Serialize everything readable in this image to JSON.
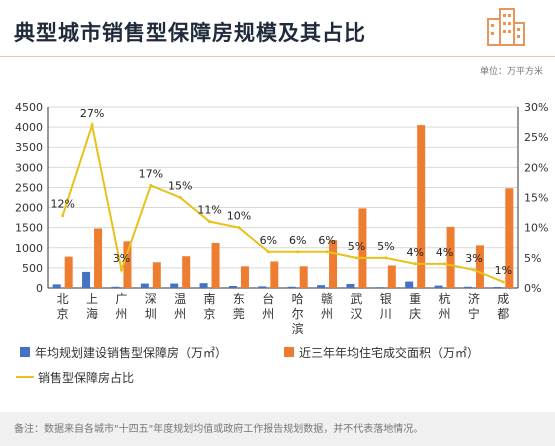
{
  "title": "典型城市销售型保障房规模及其占比",
  "unit_label": "单位：万平方米",
  "footnote": "备注：数据来自各城市\"十四五\"年度规划均值或政府工作报告规划数据，并不代表落地情况。",
  "colors": {
    "blue": "#4472C4",
    "orange": "#ED7D31",
    "line": "#E8C21A",
    "grid": "#d9d9d9",
    "axis": "#333333"
  },
  "chart_data": {
    "type": "bar",
    "categories": [
      "北京",
      "上海",
      "广州",
      "深圳",
      "温州",
      "南京",
      "东莞",
      "台州",
      "哈尔滨",
      "赣州",
      "武汉",
      "银川",
      "重庆",
      "杭州",
      "济宁",
      "成都"
    ],
    "series": [
      {
        "name": "年均规划建设销售型保障房（万㎡）",
        "type": "bar",
        "axis": "left",
        "color": "#4472C4",
        "values": [
          90,
          400,
          30,
          110,
          110,
          120,
          50,
          40,
          30,
          70,
          100,
          20,
          160,
          60,
          30,
          25
        ]
      },
      {
        "name": "近三年年均住宅成交面积（万㎡）",
        "type": "bar",
        "axis": "left",
        "color": "#ED7D31",
        "values": [
          780,
          1480,
          1160,
          640,
          790,
          1120,
          540,
          660,
          540,
          1190,
          1980,
          560,
          4050,
          1520,
          1060,
          2480
        ]
      },
      {
        "name": "销售型保障房占比",
        "type": "line",
        "axis": "right",
        "color": "#E8C21A",
        "values": [
          12,
          27,
          3,
          17,
          15,
          11,
          10,
          6,
          6,
          6,
          5,
          5,
          4,
          4,
          3,
          1
        ],
        "labels": [
          "12%",
          "27%",
          "3%",
          "17%",
          "15%",
          "11%",
          "10%",
          "6%",
          "6%",
          "6%",
          "5%",
          "5%",
          "4%",
          "4%",
          "3%",
          "1%"
        ]
      }
    ],
    "y_left": {
      "min": 0,
      "max": 4500,
      "ticks": [
        "0",
        "500",
        "1000",
        "1500",
        "2000",
        "2500",
        "3000",
        "3500",
        "4000",
        "4500"
      ]
    },
    "y_right": {
      "min": 0,
      "max": 30,
      "ticks": [
        "0%",
        "5%",
        "10%",
        "15%",
        "20%",
        "25%",
        "30%"
      ]
    },
    "grid": true,
    "legend_position": "bottom"
  }
}
